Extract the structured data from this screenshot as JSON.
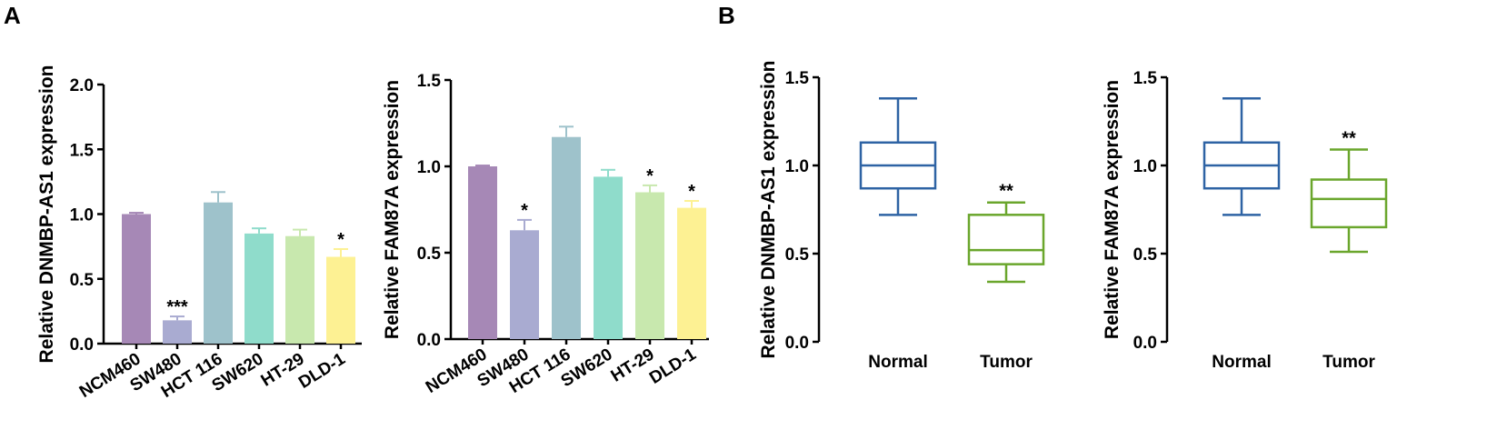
{
  "panels": {
    "A": {
      "letter": "A"
    },
    "B": {
      "letter": "B"
    }
  },
  "colors": {
    "axis": "#000000",
    "normal_box": "#2e63a4",
    "tumor_box": "#6aa62c",
    "bar_palette": [
      "#a688b6",
      "#a9abd1",
      "#9ec2cb",
      "#8fdccb",
      "#c8e8ae",
      "#fdf193"
    ]
  },
  "chart_data": [
    {
      "type": "bar",
      "panel": "A",
      "ylabel": "Relative DNMBP-AS1 expression",
      "ylim": [
        0,
        2.0
      ],
      "yticks": [
        "0.0",
        "0.5",
        "1.0",
        "1.5",
        "2.0"
      ],
      "categories": [
        "NCM460",
        "SW480",
        "HCT 116",
        "SW620",
        "HT-29",
        "DLD-1"
      ],
      "values": [
        1.0,
        0.18,
        1.09,
        0.85,
        0.83,
        0.67
      ],
      "errors": [
        0.01,
        0.03,
        0.08,
        0.04,
        0.05,
        0.06
      ],
      "significance": [
        "",
        "***",
        "",
        "",
        "",
        "*"
      ]
    },
    {
      "type": "bar",
      "panel": "A",
      "ylabel": "Relative FAM87A expression",
      "ylim": [
        0,
        1.5
      ],
      "yticks": [
        "0.0",
        "0.5",
        "1.0",
        "1.5"
      ],
      "categories": [
        "NCM460",
        "SW480",
        "HCT 116",
        "SW620",
        "HT-29",
        "DLD-1"
      ],
      "values": [
        1.0,
        0.63,
        1.17,
        0.94,
        0.85,
        0.76
      ],
      "errors": [
        0.005,
        0.06,
        0.06,
        0.04,
        0.04,
        0.04
      ],
      "significance": [
        "",
        "*",
        "",
        "",
        "*",
        "*"
      ]
    },
    {
      "type": "box",
      "panel": "B",
      "ylabel": "Relative DNMBP-AS1 expression",
      "ylim": [
        0,
        1.5
      ],
      "yticks": [
        "0.0",
        "0.5",
        "1.0",
        "1.5"
      ],
      "categories": [
        "Normal",
        "Tumor"
      ],
      "boxes": [
        {
          "min": 0.72,
          "q1": 0.87,
          "median": 1.0,
          "q3": 1.13,
          "max": 1.38
        },
        {
          "min": 0.34,
          "q1": 0.44,
          "median": 0.52,
          "q3": 0.72,
          "max": 0.79
        }
      ],
      "significance": [
        "",
        "**"
      ]
    },
    {
      "type": "box",
      "panel": "B",
      "ylabel": "Relative FAM87A expression",
      "ylim": [
        0,
        1.5
      ],
      "yticks": [
        "0.0",
        "0.5",
        "1.0",
        "1.5"
      ],
      "categories": [
        "Normal",
        "Tumor"
      ],
      "boxes": [
        {
          "min": 0.72,
          "q1": 0.87,
          "median": 1.0,
          "q3": 1.13,
          "max": 1.38
        },
        {
          "min": 0.51,
          "q1": 0.65,
          "median": 0.81,
          "q3": 0.92,
          "max": 1.09
        }
      ],
      "significance": [
        "",
        "**"
      ]
    }
  ]
}
